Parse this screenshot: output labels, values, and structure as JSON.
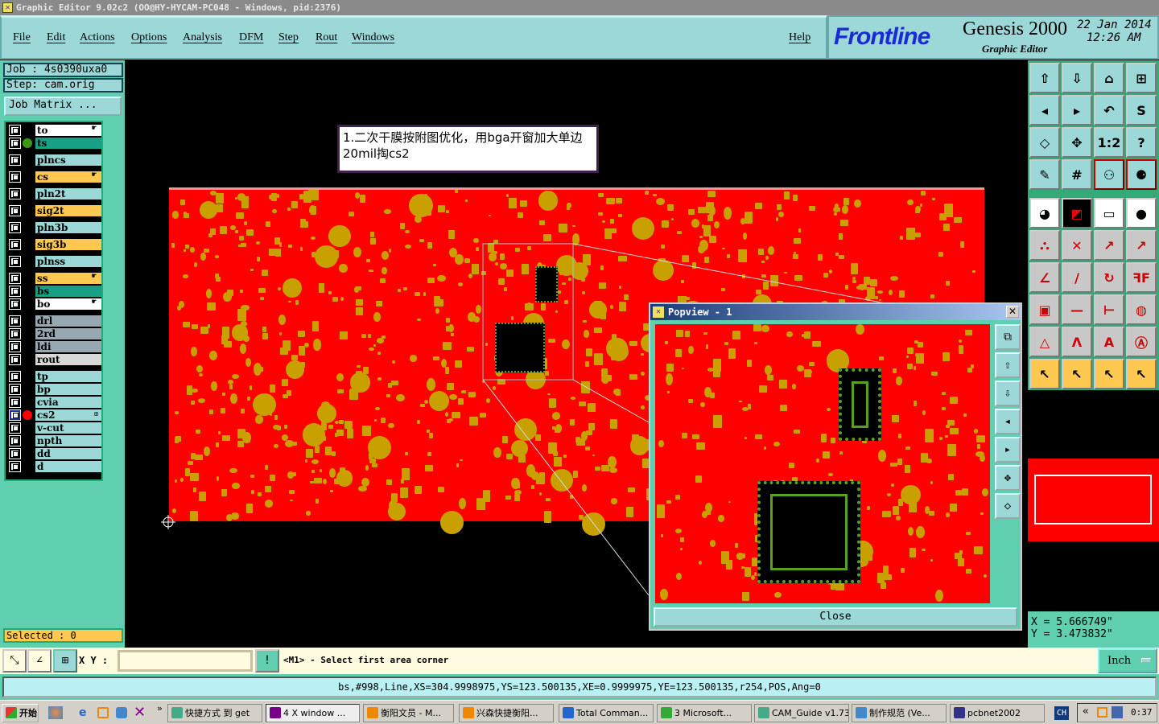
{
  "window": {
    "title": "Graphic Editor 9.02c2 (OO@HY-HYCAM-PC048 - Windows, pid:2376)"
  },
  "menu": {
    "items": [
      "File",
      "Edit",
      "Actions",
      "Options",
      "Analysis",
      "DFM",
      "Step",
      "Rout",
      "Windows"
    ],
    "help": "Help"
  },
  "brand": {
    "logo": "Frontline",
    "product": "Genesis 2000",
    "subtitle": "Graphic Editor",
    "date": "22 Jan 2014",
    "time": "12:26 AM"
  },
  "job": {
    "job_label": "Job : 4s0390uxa0",
    "step_label": "Step: cam.orig",
    "matrix_button": "Job Matrix ..."
  },
  "layers": [
    {
      "name": "to",
      "color": "#ffffff",
      "hand": true
    },
    {
      "name": "ts",
      "color": "#17a085",
      "dot": "#3a9a10"
    },
    {
      "name": "plncs",
      "color": "#9cd8d8"
    },
    {
      "name": "cs",
      "color": "#ffc850",
      "hand": true
    },
    {
      "name": "pln2t",
      "color": "#9cd8d8"
    },
    {
      "name": "sig2t",
      "color": "#ffc850"
    },
    {
      "name": "pln3b",
      "color": "#9cd8d8"
    },
    {
      "name": "sig3b",
      "color": "#ffc850"
    },
    {
      "name": "plnss",
      "color": "#9cd8d8"
    },
    {
      "name": "ss",
      "color": "#ffc850",
      "hand": true
    },
    {
      "name": "bs",
      "color": "#17a085"
    },
    {
      "name": "bo",
      "color": "#ffffff",
      "hand": true
    },
    {
      "name": "drl",
      "color": "#98a8b0"
    },
    {
      "name": "2rd",
      "color": "#98a8b0"
    },
    {
      "name": "ldi",
      "color": "#98a8b0"
    },
    {
      "name": "rout",
      "color": "#d8d8d8"
    },
    {
      "name": "tp",
      "color": "#9cd8d8"
    },
    {
      "name": "bp",
      "color": "#9cd8d8"
    },
    {
      "name": "cvia",
      "color": "#9cd8d8"
    },
    {
      "name": "cs2",
      "color": "#9cd8d8",
      "dot": "#ff0000",
      "selected": true
    },
    {
      "name": "v-cut",
      "color": "#9cd8d8"
    },
    {
      "name": "npth",
      "color": "#9cd8d8"
    },
    {
      "name": "dd",
      "color": "#9cd8d8"
    },
    {
      "name": "d",
      "color": "#9cd8d8"
    }
  ],
  "selected": "Selected : 0",
  "note": "1.二次干膜按附图优化，用bga开窗加大单边20mil掏cs2",
  "colors": {
    "board": "#ff0000",
    "pad": "#c8a000",
    "bga": "#58a020",
    "panel": "#5fcfb0",
    "menu": "#9cd8d8"
  },
  "toolbar": [
    "zoom-in",
    "zoom-out",
    "home",
    "grid-xy",
    "pan-left",
    "pan-right",
    "undo-view",
    "snap",
    "zoom-fit",
    "zoom-profile",
    "zoom-1-2",
    "help",
    "tools",
    "grid",
    "layer-display-a",
    "layer-display-b",
    "move",
    "select-area",
    "measure",
    "pad",
    "connect",
    "delete",
    "move-point",
    "copy-point",
    "line",
    "line-edit",
    "arc",
    "mirror",
    "move-pad",
    "segment",
    "dimension",
    "features",
    "add-triangle",
    "add-arc-a",
    "add-arc-b",
    "add-arc-c",
    "select",
    "select-box",
    "select-polygon",
    "select-net"
  ],
  "popview": {
    "title": "Popview - 1",
    "close": "Close",
    "side_icons": [
      "view-link",
      "zoom-in",
      "zoom-out",
      "pan-left",
      "pan-right",
      "zoom-fit",
      "zoom-profile"
    ]
  },
  "coords": {
    "x": "X  =  5.666749\"",
    "y": "Y  =  3.473832\""
  },
  "command": {
    "xy_label": "X Y :",
    "xy_value": "",
    "prompt": "<M1> - Select first area corner",
    "units": "Inch"
  },
  "status": "bs,#998,Line,XS=304.9998975,YS=123.500135,XE=0.9999975,YE=123.500135,r254,POS,Ang=0",
  "taskbar": {
    "start": "开始",
    "tasks": [
      "快捷方式 到 get",
      "4 X window ...",
      "衡阳文员 - M...",
      "兴森快捷衡阳...",
      "Total Comman...",
      "3 Microsoft...",
      "CAM_Guide v1.73",
      "制作规范 (Ve...",
      "pcbnet2002"
    ],
    "lang": "CH",
    "clock": "0:37"
  }
}
